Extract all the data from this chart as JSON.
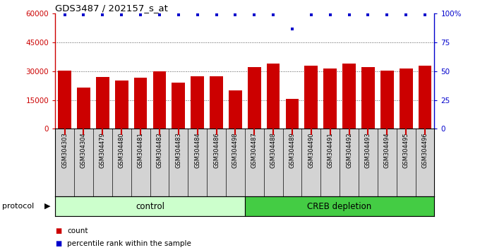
{
  "title": "GDS3487 / 202157_s_at",
  "samples": [
    "GSM304303",
    "GSM304304",
    "GSM304479",
    "GSM304480",
    "GSM304481",
    "GSM304482",
    "GSM304483",
    "GSM304484",
    "GSM304486",
    "GSM304498",
    "GSM304487",
    "GSM304488",
    "GSM304489",
    "GSM304490",
    "GSM304491",
    "GSM304492",
    "GSM304493",
    "GSM304494",
    "GSM304495",
    "GSM304496"
  ],
  "bar_values": [
    30500,
    21500,
    27000,
    25000,
    26500,
    30000,
    24000,
    27500,
    27500,
    20000,
    32000,
    34000,
    15500,
    33000,
    31500,
    34000,
    32000,
    30500,
    31500,
    33000
  ],
  "percentile_values": [
    99,
    99,
    99,
    99,
    99,
    99,
    99,
    99,
    99,
    99,
    99,
    99,
    87,
    99,
    99,
    99,
    99,
    99,
    99,
    99
  ],
  "bar_color": "#cc0000",
  "dot_color": "#0000cc",
  "groups": [
    {
      "label": "control",
      "start": 0,
      "end": 9,
      "color": "#ccffcc"
    },
    {
      "label": "CREB depletion",
      "start": 10,
      "end": 19,
      "color": "#44cc44"
    }
  ],
  "group_row_label": "protocol",
  "ylim_left": [
    0,
    60000
  ],
  "ylim_right": [
    0,
    100
  ],
  "yticks_left": [
    0,
    15000,
    30000,
    45000,
    60000
  ],
  "ytick_labels_left": [
    "0",
    "15000",
    "30000",
    "45000",
    "60000"
  ],
  "yticks_right": [
    0,
    25,
    50,
    75,
    100
  ],
  "ytick_labels_right": [
    "0",
    "25",
    "50",
    "75",
    "100%"
  ],
  "grid_values": [
    15000,
    30000,
    45000
  ],
  "legend_items": [
    {
      "label": "count",
      "color": "#cc0000"
    },
    {
      "label": "percentile rank within the sample",
      "color": "#0000cc"
    }
  ],
  "background_color": "#ffffff",
  "tick_area_color": "#d3d3d3",
  "n_control": 10,
  "n_creb": 10
}
